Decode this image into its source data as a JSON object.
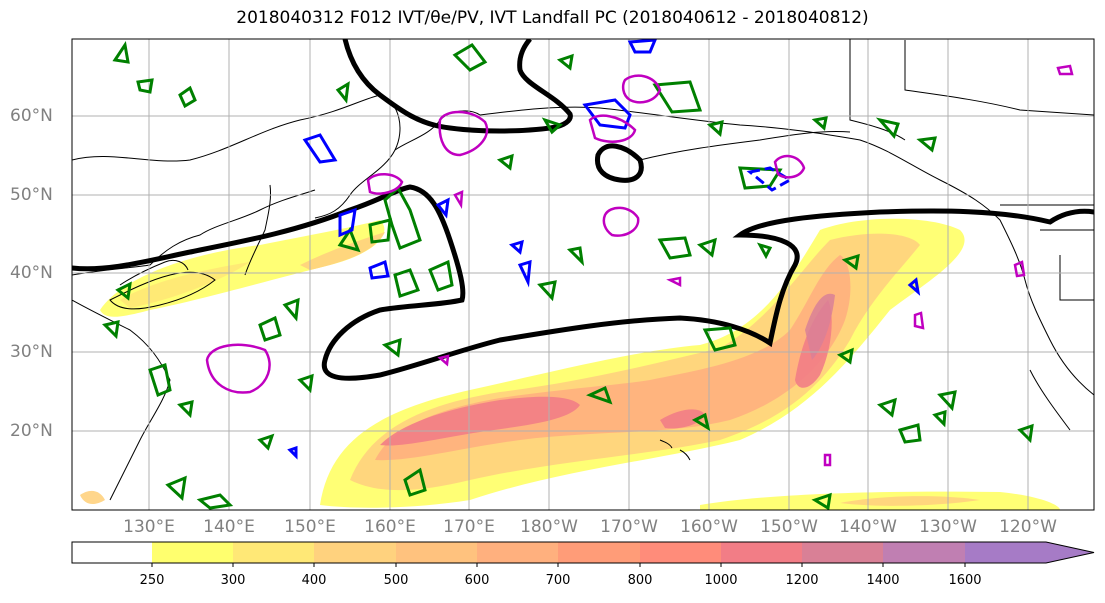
{
  "title": "2018040312 F012 IVT/θe/PV, IVT Landfall PC (2018040612 - 2018040812)",
  "lat_labels": [
    "60°N",
    "50°N",
    "40°N",
    "30°N",
    "20°N"
  ],
  "lon_labels": [
    "130°E",
    "140°E",
    "150°E",
    "160°E",
    "170°E",
    "180°W",
    "170°W",
    "160°W",
    "150°W",
    "140°W",
    "130°W",
    "120°W"
  ],
  "colorbar": {
    "ticks": [
      "250",
      "300",
      "400",
      "500",
      "600",
      "700",
      "800",
      "1000",
      "1200",
      "1400",
      "1600"
    ],
    "colors": [
      "#ffff6e",
      "#ffe876",
      "#ffd27e",
      "#ffc27e",
      "#ffb07e",
      "#ff9c78",
      "#ff8c7a",
      "#f27d86",
      "#d98096",
      "#c07fb2",
      "#a67bc6"
    ]
  },
  "colors": {
    "ivt_fill_low": "#ffff6e",
    "ivt_fill_high": "#f07a7a",
    "theta_e_contour": "#000000",
    "pv_positive": "#008000",
    "pv_negative": "#0000ff",
    "landfall_pc": "#c000c0",
    "grid": "#b0b0b0",
    "tick_label": "#808080"
  }
}
